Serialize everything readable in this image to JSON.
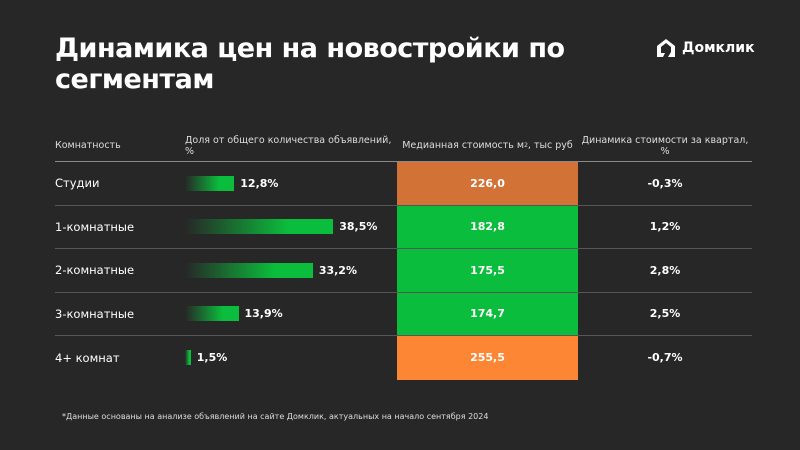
{
  "title": "Динамика цен на новостройки по сегментам",
  "logo": "Домклик",
  "headers": {
    "rooms": "Комнатность",
    "share": "Доля от общего количества объявлений, %",
    "price": "Медианная стоимость м",
    "price_sup": "2",
    "price_tail": ", тыс руб",
    "dynamics": "Динамика стоимости за квартал, %"
  },
  "rows": [
    {
      "label": "Студии",
      "share": 12.8,
      "share_text": "12,8%",
      "price": "226,0",
      "price_color": "#d37236",
      "dynamics": "-0,3%"
    },
    {
      "label": "1-комнатные",
      "share": 38.5,
      "share_text": "38,5%",
      "price": "182,8",
      "price_color": "#0bbd3c",
      "dynamics": "1,2%"
    },
    {
      "label": "2-комнатные",
      "share": 33.2,
      "share_text": "33,2%",
      "price": "175,5",
      "price_color": "#0bbd3c",
      "dynamics": "2,8%"
    },
    {
      "label": "3-комнатные",
      "share": 13.9,
      "share_text": "13,9%",
      "price": "174,7",
      "price_color": "#0bbd3c",
      "dynamics": "2,5%"
    },
    {
      "label": "4+ комнат",
      "share": 1.5,
      "share_text": "1,5%",
      "price": "255,5",
      "price_color": "#fd8634",
      "dynamics": "-0,7%"
    }
  ],
  "footnote": "*Данные основаны на анализе объявлений на сайте Домклик, актуальных на начало сентября 2024"
}
